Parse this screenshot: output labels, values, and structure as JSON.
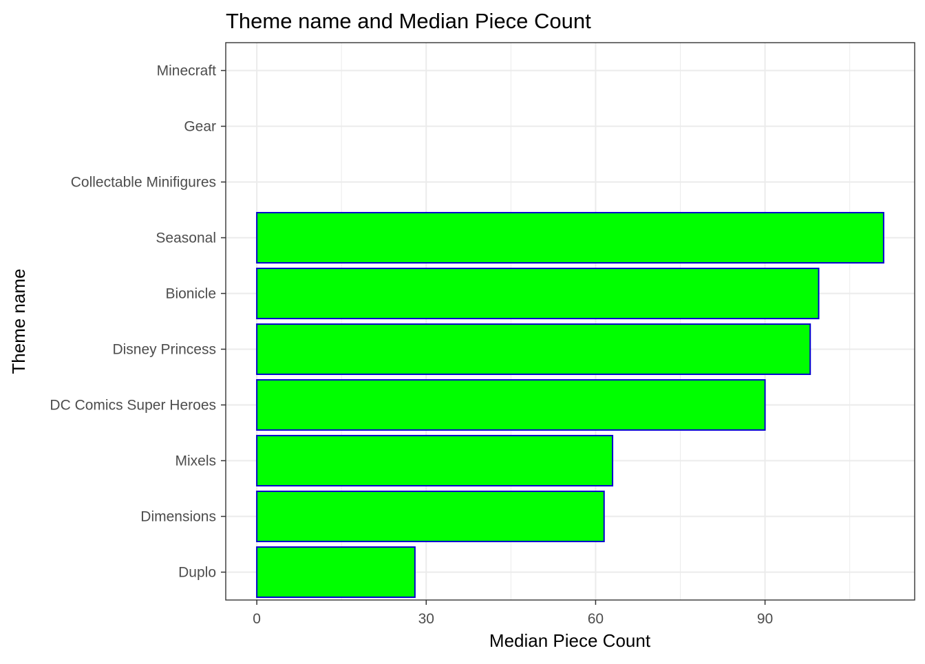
{
  "chart_data": {
    "type": "bar",
    "orientation": "horizontal",
    "title": "Theme name and Median Piece Count",
    "xlabel": "Median Piece Count",
    "ylabel": "Theme name",
    "categories": [
      "Minecraft",
      "Gear",
      "Collectable Minifigures",
      "Seasonal",
      "Bionicle",
      "Disney Princess",
      "DC Comics Super Heroes",
      "Mixels",
      "Dimensions",
      "Duplo"
    ],
    "values": [
      0,
      0,
      0,
      111,
      99.5,
      98,
      90,
      63,
      61.5,
      28
    ],
    "xlim": [
      -5.5,
      116.5
    ],
    "xticks": [
      0,
      30,
      60,
      90
    ],
    "xtick_labels": [
      "0",
      "30",
      "60",
      "90"
    ],
    "grid": true,
    "legend": "none",
    "colors": {
      "bar_fill": "#00ff00",
      "bar_stroke": "#0000cd",
      "grid": "#ebebeb",
      "panel_border": "#333333"
    }
  }
}
